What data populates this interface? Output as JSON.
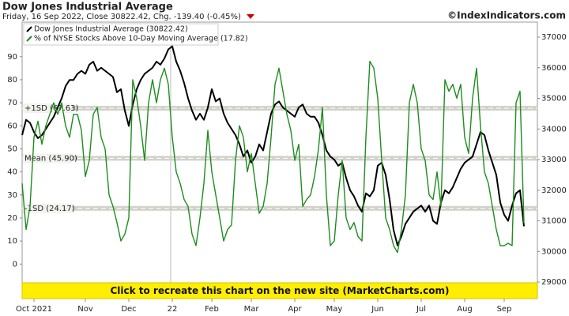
{
  "chart_data": {
    "type": "line",
    "title": "Dow Jones Industrial Average",
    "subtitle": "Friday, 16 Sep 2022, Close 30822.42, Chg. -139.40 (-0.45%)",
    "source": "©IndexIndicators.com",
    "banner": "Click to recreate this chart on the new site (MarketCharts.com)",
    "categories": [
      null,
      null,
      null,
      "Oct 2021",
      null,
      null,
      null,
      null,
      null,
      null,
      null,
      null,
      null,
      null,
      null,
      null,
      "Nov",
      null,
      null,
      null,
      null,
      null,
      null,
      null,
      null,
      null,
      null,
      "Dec",
      null,
      null,
      null,
      null,
      null,
      null,
      null,
      null,
      null,
      null,
      "22",
      null,
      null,
      null,
      null,
      null,
      null,
      null,
      null,
      null,
      "Feb",
      null,
      null,
      null,
      null,
      null,
      null,
      null,
      null,
      null,
      "Mar",
      null,
      null,
      null,
      null,
      null,
      null,
      null,
      null,
      null,
      null,
      "Apr",
      null,
      null,
      null,
      null,
      null,
      null,
      null,
      null,
      null,
      "May",
      null,
      null,
      null,
      null,
      null,
      null,
      null,
      null,
      null,
      null,
      "Jun",
      null,
      null,
      null,
      null,
      null,
      null,
      null,
      null,
      null,
      null,
      "Jul",
      null,
      null,
      null,
      null,
      null,
      null,
      null,
      null,
      null,
      null,
      "Aug",
      null,
      null,
      null,
      null,
      null,
      null,
      null,
      null,
      null,
      "Sep",
      null,
      null,
      null,
      null,
      null
    ],
    "series": [
      {
        "name": "Dow Jones Industrial Average (30822.42)",
        "color": "#000000",
        "axis": "y2",
        "values": [
          33800,
          34300,
          34200,
          33900,
          33700,
          33800,
          34000,
          34200,
          34400,
          34700,
          35000,
          35400,
          35600,
          35600,
          35800,
          35900,
          35800,
          36100,
          36200,
          35900,
          36000,
          35900,
          35800,
          35700,
          35200,
          35300,
          34600,
          34100,
          34800,
          35300,
          35600,
          35800,
          35900,
          36000,
          36200,
          36100,
          36300,
          36600,
          36700,
          36200,
          35900,
          35500,
          35000,
          34600,
          34300,
          34500,
          34300,
          34700,
          35300,
          34900,
          35000,
          34500,
          34200,
          34000,
          33800,
          33500,
          33100,
          33300,
          32900,
          33100,
          33500,
          33300,
          33900,
          34500,
          34800,
          34900,
          34700,
          34600,
          34500,
          34400,
          34700,
          34800,
          34500,
          34400,
          34400,
          34200,
          33800,
          33300,
          33100,
          33000,
          32800,
          32900,
          32400,
          32000,
          31800,
          31500,
          31300,
          31900,
          31800,
          32000,
          32800,
          32900,
          32500,
          31700,
          30700,
          30200,
          30500,
          30900,
          31100,
          31300,
          31400,
          31500,
          31300,
          31500,
          31000,
          30900,
          31600,
          32000,
          31900,
          32100,
          32400,
          32700,
          32900,
          33000,
          33100,
          33500,
          33900,
          33800,
          33300,
          32900,
          32500,
          31600,
          31200,
          31000,
          31500,
          31900,
          32000,
          30822.42
        ]
      },
      {
        "name": "% of NYSE Stocks Above 10-Day Moving Average (17.82)",
        "color": "#1e8c1e",
        "values": [
          35,
          15,
          25,
          55,
          62,
          52,
          60,
          65,
          70,
          65,
          70,
          60,
          55,
          65,
          65,
          58,
          38,
          45,
          65,
          68,
          55,
          50,
          30,
          25,
          18,
          10,
          13,
          20,
          80,
          72,
          60,
          45,
          70,
          80,
          70,
          80,
          85,
          78,
          55,
          40,
          35,
          28,
          25,
          13,
          8,
          20,
          35,
          58,
          40,
          30,
          20,
          10,
          15,
          17,
          45,
          60,
          55,
          40,
          48,
          35,
          22,
          25,
          35,
          55,
          78,
          85,
          75,
          65,
          58,
          45,
          52,
          25,
          28,
          30,
          38,
          50,
          68,
          30,
          8,
          10,
          30,
          45,
          20,
          15,
          18,
          12,
          10,
          55,
          88,
          85,
          72,
          45,
          20,
          15,
          8,
          5,
          15,
          30,
          70,
          78,
          70,
          50,
          45,
          30,
          28,
          40,
          25,
          80,
          75,
          78,
          72,
          78,
          55,
          48,
          72,
          85,
          60,
          40,
          35,
          25,
          15,
          8,
          8,
          9,
          8,
          70,
          75,
          17.82
        ]
      }
    ],
    "reference_lines": [
      {
        "value": 67.63,
        "label": "+1SD (67.63)"
      },
      {
        "value": 45.9,
        "label": "Mean (45.90)"
      },
      {
        "value": 24.17,
        "label": "-1SD (24.17)"
      }
    ],
    "ylim": [
      -15,
      105
    ],
    "yticks": [
      0,
      10,
      20,
      30,
      40,
      50,
      60,
      70,
      80,
      90
    ],
    "y2lim": [
      28460,
      37490
    ],
    "y2ticks": [
      29000,
      30000,
      31000,
      32000,
      33000,
      34000,
      35000,
      36000,
      37000
    ],
    "legend": "top-left"
  }
}
